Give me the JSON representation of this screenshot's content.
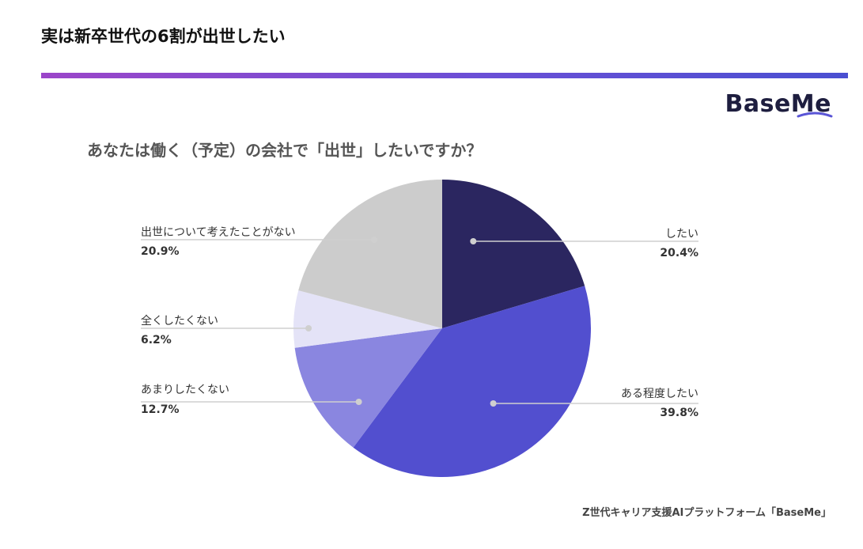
{
  "page": {
    "title": "実は新卒世代の6割が出世したい",
    "logo": "BaseMe",
    "source": "Z世代キャリア支援AIプラットフォーム「BaseMe」"
  },
  "chart_data": {
    "type": "pie",
    "title": "あなたは働く（予定）の会社で「出世」したいですか？",
    "start_angle_deg": 0,
    "direction": "clockwise",
    "slices": [
      {
        "label": "したい",
        "value": 20.4,
        "display": "20.4%",
        "color": "#2b2660"
      },
      {
        "label": "ある程度したい",
        "value": 39.8,
        "display": "39.8%",
        "color": "#524fcf"
      },
      {
        "label": "あまりしたくない",
        "value": 12.7,
        "display": "12.7%",
        "color": "#8a86e0"
      },
      {
        "label": "全くしたくない",
        "value": 6.2,
        "display": "6.2%",
        "color": "#e4e3f7"
      },
      {
        "label": "出世について考えたことがない",
        "value": 20.9,
        "display": "20.9%",
        "color": "#cccccc"
      }
    ],
    "legend": "callouts"
  }
}
